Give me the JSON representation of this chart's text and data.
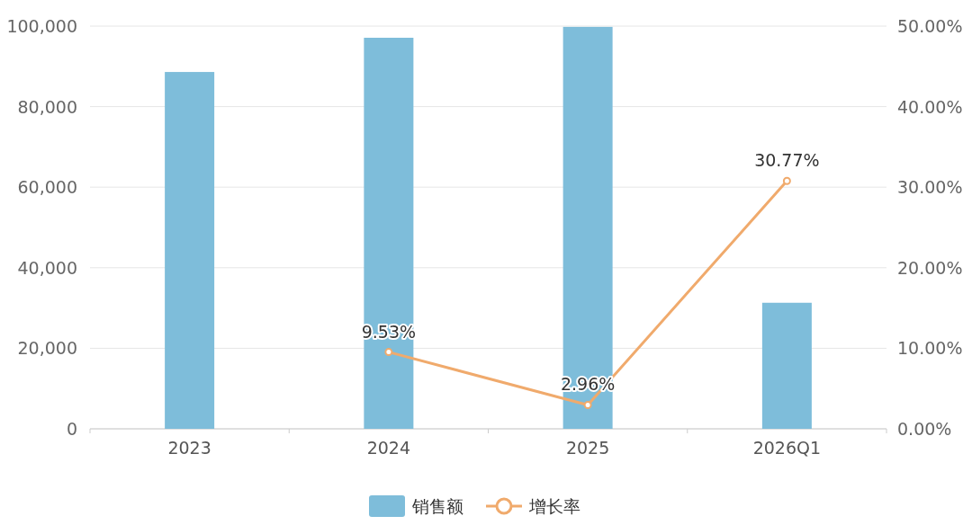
{
  "chart_data": {
    "type": "bar",
    "categories": [
      "2023",
      "2024",
      "2025",
      "2026Q1"
    ],
    "series": [
      {
        "name": "销售额",
        "color": "#7ebdda",
        "values": [
          88600,
          97100,
          99800,
          31300
        ]
      },
      {
        "name": "增长率",
        "type": "line",
        "axis": "y2",
        "color": "#f0aa6c",
        "marker": "circle",
        "values": [
          null,
          9.53,
          2.96,
          30.77
        ],
        "value_labels": [
          null,
          "9.53%",
          "2.96%",
          "30.77%"
        ]
      }
    ],
    "ylim": [
      0,
      100000
    ],
    "yticks": [
      {
        "value": 0,
        "label": "0"
      },
      {
        "value": 20000,
        "label": "20,000"
      },
      {
        "value": 40000,
        "label": "40,000"
      },
      {
        "value": 60000,
        "label": "60,000"
      },
      {
        "value": 80000,
        "label": "80,000"
      },
      {
        "value": 100000,
        "label": "100,000"
      }
    ],
    "y2lim": [
      0,
      50
    ],
    "y2ticks": [
      {
        "value": 0,
        "label": "0.00%"
      },
      {
        "value": 10,
        "label": "10.00%"
      },
      {
        "value": 20,
        "label": "20.00%"
      },
      {
        "value": 30,
        "label": "30.00%"
      },
      {
        "value": 40,
        "label": "40.00%"
      },
      {
        "value": 50,
        "label": "50.00%"
      }
    ],
    "grid": "y",
    "legend": "bottom"
  }
}
